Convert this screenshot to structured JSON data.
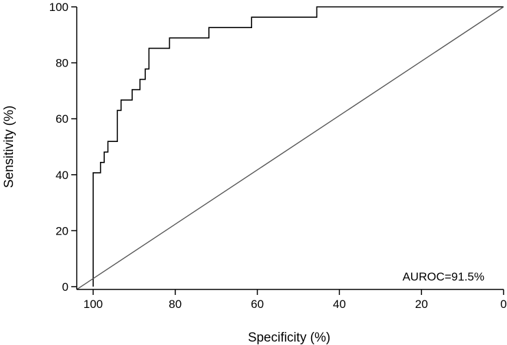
{
  "chart_data": {
    "type": "line",
    "xlabel": "Specificity (%)",
    "ylabel": "Sensitivity (%)",
    "annotation": "AUROC=91.5%",
    "xlim": [
      104,
      0
    ],
    "ylim": [
      -1,
      100
    ],
    "x_ticks": [
      100,
      80,
      60,
      40,
      20,
      0
    ],
    "y_ticks": [
      0,
      20,
      40,
      60,
      80,
      100
    ],
    "grid": false,
    "series": [
      {
        "style": "step",
        "color": "#000000",
        "points": [
          [
            100,
            0
          ],
          [
            100,
            40.7
          ],
          [
            98.2,
            40.7
          ],
          [
            98.2,
            44.4
          ],
          [
            97.3,
            44.4
          ],
          [
            97.3,
            48.1
          ],
          [
            96.4,
            48.1
          ],
          [
            96.4,
            51.9
          ],
          [
            94.1,
            51.9
          ],
          [
            94.1,
            63.0
          ],
          [
            93.2,
            63.0
          ],
          [
            93.2,
            66.7
          ],
          [
            90.5,
            66.7
          ],
          [
            90.5,
            70.4
          ],
          [
            88.6,
            70.4
          ],
          [
            88.6,
            74.1
          ],
          [
            87.3,
            74.1
          ],
          [
            87.3,
            77.8
          ],
          [
            86.4,
            77.8
          ],
          [
            86.4,
            85.2
          ],
          [
            81.4,
            85.2
          ],
          [
            81.4,
            88.9
          ],
          [
            71.8,
            88.9
          ],
          [
            71.8,
            92.6
          ],
          [
            61.4,
            92.6
          ],
          [
            61.4,
            96.3
          ],
          [
            45.5,
            96.3
          ],
          [
            45.5,
            100
          ],
          [
            0,
            100
          ]
        ]
      },
      {
        "style": "reference",
        "color": "#555555",
        "points": [
          [
            104,
            -1
          ],
          [
            0,
            100
          ]
        ]
      }
    ]
  }
}
